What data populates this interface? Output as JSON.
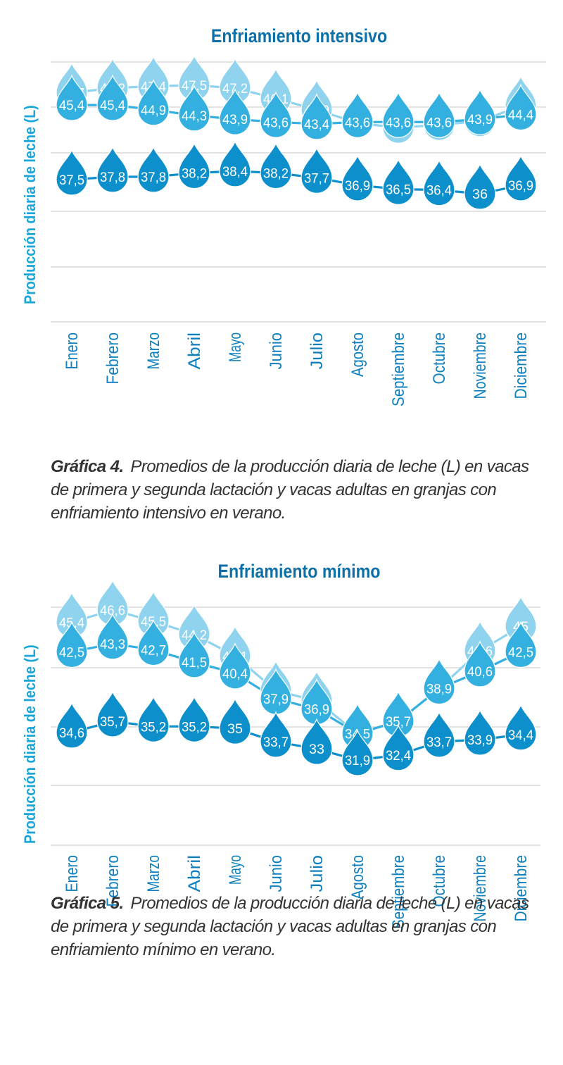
{
  "chart_data": [
    {
      "type": "line",
      "title": "Enfriamiento intensivo",
      "ylabel": "Producción diaria de leche (L)",
      "categories": [
        "Enero",
        "Febrero",
        "Marzo",
        "Abril",
        "Mayo",
        "Junio",
        "Julio",
        "Agosto",
        "Septiembre",
        "Octubre",
        "Noviembre",
        "Diciembre"
      ],
      "series": [
        {
          "color": "#8fd3ee",
          "values": [
            "46,7",
            "47,2",
            "47,4",
            "47,5",
            "47,2",
            "46,1",
            "44,9",
            "43,5",
            "43",
            "43,3",
            "43,7",
            "45,3"
          ]
        },
        {
          "color": "#33b0df",
          "values": [
            "45,4",
            "45,4",
            "44,9",
            "44,3",
            "43,9",
            "43,6",
            "43,4",
            "43,6",
            "43,6",
            "43,6",
            "43,9",
            "44,4"
          ]
        },
        {
          "color": "#0c8fcb",
          "values": [
            "37,5",
            "37,8",
            "37,8",
            "38,2",
            "38,4",
            "38,2",
            "37,7",
            "36,9",
            "36,5",
            "36,4",
            "36",
            "36,9"
          ]
        }
      ],
      "grid": true,
      "caption_label": "Gráfica 4.",
      "caption_text": "Promedios de la producción diaria de leche (L) en vacas de primera y segunda lactación y vacas adultas en granjas con enfriamiento intensivo en verano."
    },
    {
      "type": "line",
      "title": "Enfriamiento mínimo",
      "ylabel": "Producción diaria de leche (L)",
      "categories": [
        "Enero",
        "Febrero",
        "Marzo",
        "Abril",
        "Mayo",
        "Junio",
        "Julio",
        "Agosto",
        "Septiembre",
        "Octubre",
        "Noviembre",
        "Diciembre"
      ],
      "series": [
        {
          "color": "#8fd3ee",
          "values": [
            "45,4",
            "46,6",
            "45,5",
            "44,2",
            "42,1",
            "38,7",
            "37,7",
            "34,5",
            "35,7",
            "38,9",
            "42,6",
            "45"
          ]
        },
        {
          "color": "#33b0df",
          "values": [
            "42,5",
            "43,3",
            "42,7",
            "41,5",
            "40,4",
            "37,9",
            "36,9",
            "34,5",
            "35,7",
            "38,9",
            "40,6",
            "42,5"
          ]
        },
        {
          "color": "#0c8fcb",
          "values": [
            "34,6",
            "35,7",
            "35,2",
            "35,2",
            "35",
            "33,7",
            "33",
            "31,9",
            "32,4",
            "33,7",
            "33,9",
            "34,4"
          ]
        }
      ],
      "grid": true,
      "caption_label": "Gráfica 5.",
      "caption_text": "Promedios de la producción diaria de leche (L) en vacas de primera y segunda lactación y vacas adultas en granjas con enfriamiento mínimo en verano."
    }
  ]
}
